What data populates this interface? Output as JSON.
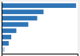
{
  "chart_data": {
    "type": "bar",
    "orientation": "horizontal",
    "categories": [
      null,
      null,
      null,
      null,
      null,
      null,
      null,
      null
    ],
    "values": [
      293,
      165,
      140,
      105,
      58,
      38,
      28,
      12
    ],
    "colors": [
      "#2e75b6",
      "#2e75b6",
      "#2e75b6",
      "#2e75b6",
      "#2e75b6",
      "#2e75b6",
      "#2e75b6",
      "#a8c8e8"
    ],
    "xlim": [
      0,
      298.86
    ],
    "tick_labels": false
  }
}
